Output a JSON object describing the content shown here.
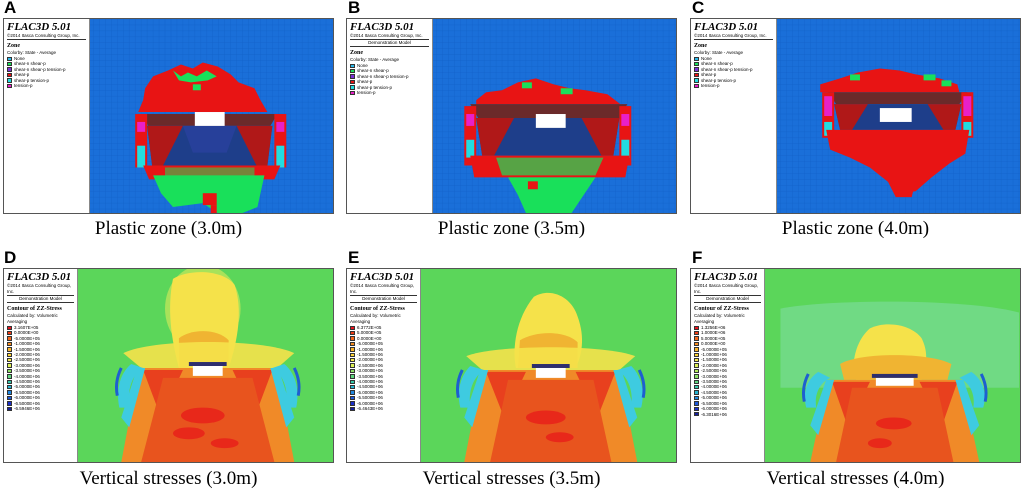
{
  "figure": {
    "panels": [
      {
        "id": "A",
        "letter": "A",
        "kind": "plastic",
        "model_line": "",
        "caption": "Plastic zone (3.0m)"
      },
      {
        "id": "B",
        "letter": "B",
        "kind": "plastic",
        "model_line": "Demonstration Model",
        "caption": "Plastic zone (3.5m)"
      },
      {
        "id": "C",
        "letter": "C",
        "kind": "plastic",
        "model_line": "",
        "caption": "Plastic zone (4.0m)"
      },
      {
        "id": "D",
        "letter": "D",
        "kind": "stress",
        "model_line": "Demonstration Model",
        "caption": "Vertical stresses (3.0m)"
      },
      {
        "id": "E",
        "letter": "E",
        "kind": "stress",
        "model_line": "Demonstration Model",
        "caption": "Vertical stresses (3.5m)"
      },
      {
        "id": "F",
        "letter": "F",
        "kind": "stress",
        "model_line": "Demonstration Model",
        "caption": "Vertical stresses (4.0m)"
      }
    ]
  },
  "legend_common": {
    "brand": "FLAC3D 5.01",
    "copyright": "©2014 Itasca Consulting Group, Inc."
  },
  "plastic_legend": {
    "title": "Zone",
    "subtitle": "Colorby: State - Average",
    "items": [
      {
        "label": "None",
        "color": "#2db8e8"
      },
      {
        "label": "shear-n shear-p",
        "color": "#19e05a"
      },
      {
        "label": "shear-n shear-p tension-p",
        "color": "#7a2fd6"
      },
      {
        "label": "shear-p",
        "color": "#e81414"
      },
      {
        "label": "shear-p tension-p",
        "color": "#22dde0"
      },
      {
        "label": "tension-p",
        "color": "#e820c8"
      }
    ]
  },
  "stress_legend": {
    "title": "Contour of ZZ-Stress",
    "subtitle": "Calculated by: Volumetric Averaging",
    "D": [
      "3.1607E+05",
      "0.0000E+00",
      "-5.0000E+05",
      "-1.0000E+06",
      "-1.5000E+06",
      "-2.0000E+06",
      "-2.5000E+06",
      "-3.0000E+06",
      "-3.5000E+06",
      "-4.0000E+06",
      "-4.5000E+06",
      "-5.0000E+06",
      "-5.5000E+06",
      "-6.0000E+06",
      "-6.5000E+06",
      "-6.5946E+06"
    ],
    "E": [
      "6.3772E+05",
      "5.0000E+05",
      "0.0000E+00",
      "-5.0000E+05",
      "-1.0000E+06",
      "-1.5000E+06",
      "-2.0000E+06",
      "-2.5000E+06",
      "-3.0000E+06",
      "-3.5000E+06",
      "-4.0000E+06",
      "-4.5000E+06",
      "-5.0000E+06",
      "-5.5000E+06",
      "-6.0000E+06",
      "-6.4643E+06"
    ],
    "F": [
      "1.3256E+06",
      "1.0000E+06",
      "5.0000E+05",
      "0.0000E+00",
      "-5.0000E+05",
      "-1.0000E+06",
      "-1.5000E+06",
      "-2.0000E+06",
      "-2.5000E+06",
      "-3.0000E+06",
      "-3.5000E+06",
      "-4.0000E+06",
      "-4.5000E+06",
      "-5.0000E+06",
      "-5.5000E+06",
      "-6.0000E+06",
      "-6.3016E+06"
    ],
    "ramp": [
      "#e8141e",
      "#ee3a14",
      "#f3641a",
      "#f78c1f",
      "#fbb428",
      "#fcd335",
      "#f5e84a",
      "#dcef55",
      "#b4ea5a",
      "#8ce064",
      "#5fd77e",
      "#35c7a8",
      "#25b3d0",
      "#2088e0",
      "#1d58d8",
      "#1a2fc8",
      "#141e9a"
    ]
  },
  "colors": {
    "model_blue": "#1a6fd9",
    "plastic_red": "#e81414",
    "plastic_green": "#19e05a",
    "plastic_cyan": "#22dde0",
    "plastic_magenta": "#e820c8",
    "roadway_white": "#ffffff",
    "stress_green": "#5bd65a",
    "stress_yellow": "#f5e24a",
    "stress_orange": "#f08a28",
    "stress_red": "#e8401e",
    "stress_cyan": "#3ecbe0",
    "stress_blue": "#1e5fd0"
  }
}
